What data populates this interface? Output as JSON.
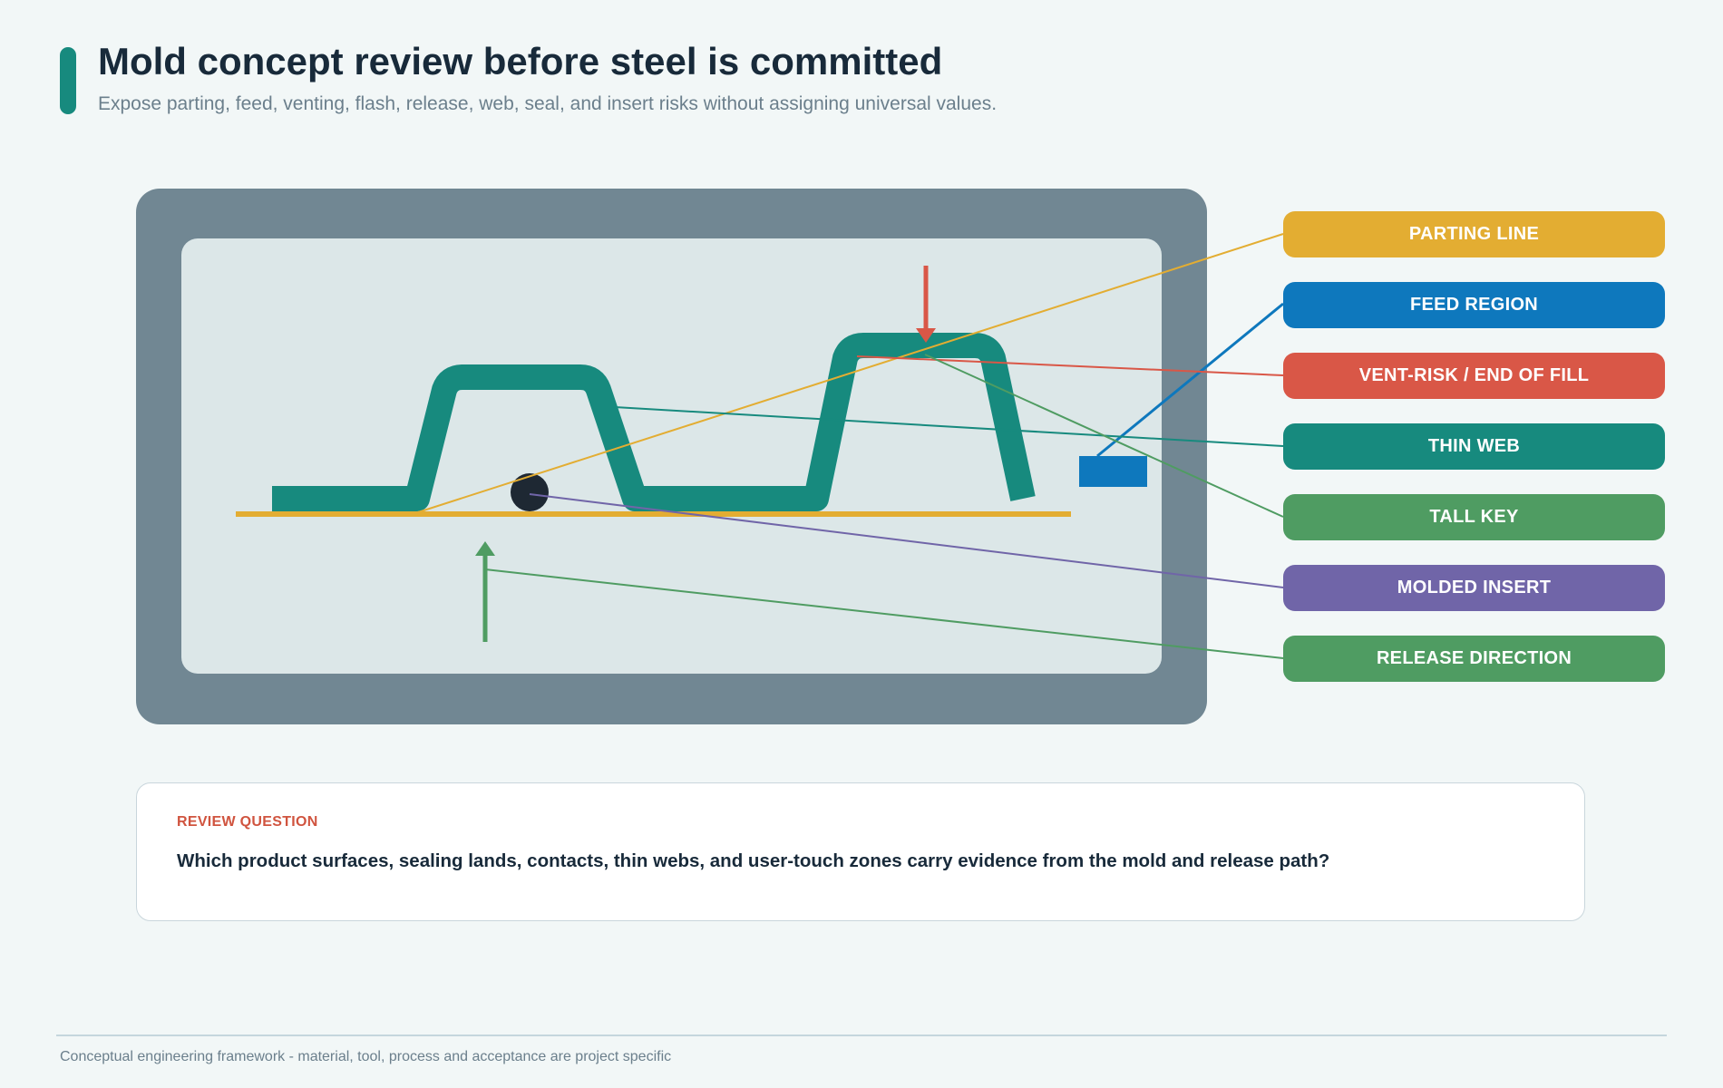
{
  "header": {
    "title": "Mold concept review before steel is committed",
    "subtitle": "Expose parting, feed, venting, flash, release, web, seal, and insert risks without assigning universal values."
  },
  "labels": [
    {
      "id": "parting-line",
      "text": "PARTING LINE",
      "color": "#e3ad32"
    },
    {
      "id": "feed-region",
      "text": "FEED REGION",
      "color": "#0e78bd"
    },
    {
      "id": "vent-risk",
      "text": "VENT-RISK / END OF FILL",
      "color": "#d95747"
    },
    {
      "id": "thin-web",
      "text": "THIN WEB",
      "color": "#178a7e"
    },
    {
      "id": "tall-key",
      "text": "TALL KEY",
      "color": "#4f9c62"
    },
    {
      "id": "molded-insert",
      "text": "MOLDED INSERT",
      "color": "#7065a8"
    },
    {
      "id": "release-direction",
      "text": "RELEASE DIRECTION",
      "color": "#4f9c62"
    }
  ],
  "colors": {
    "mold_frame": "#718793",
    "cavity": "#dce7e8",
    "part": "#178a7e",
    "insert": "#1e2833",
    "parting": "#e3ad32",
    "feed": "#0e78bd",
    "vent": "#d95747",
    "release": "#4f9c62"
  },
  "review": {
    "kicker": "REVIEW QUESTION",
    "question": "Which product surfaces, sealing lands, contacts, thin webs, and user-touch zones carry evidence from the mold and release path?"
  },
  "footer": {
    "text": "Conceptual engineering framework - material, tool, process and acceptance are project specific"
  }
}
